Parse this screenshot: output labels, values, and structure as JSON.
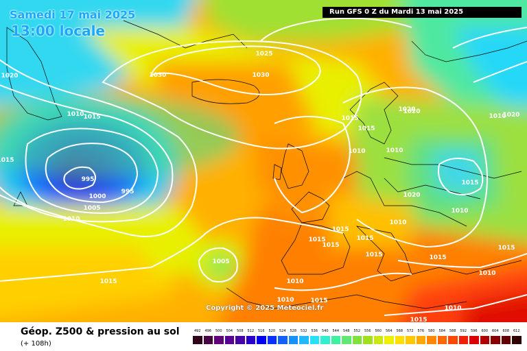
{
  "header": {
    "date": "Samedi 17 mai 2025",
    "time": "13:00 locale",
    "run": "Run GFS 0 Z du Mardi 13 mai 2025"
  },
  "copyright": "Copyright © 2025 Meteociel.fr",
  "footer": {
    "title": "Géop. Z500 & pression au sol",
    "subtitle": "(+ 108h)"
  },
  "legend": {
    "values": [
      "492",
      "496",
      "500",
      "504",
      "508",
      "512",
      "516",
      "520",
      "524",
      "528",
      "532",
      "536",
      "540",
      "544",
      "548",
      "552",
      "556",
      "560",
      "564",
      "568",
      "572",
      "576",
      "580",
      "584",
      "588",
      "592",
      "596",
      "600",
      "604",
      "608",
      "612"
    ],
    "colors": [
      "#300018",
      "#4a0040",
      "#620078",
      "#5a0090",
      "#4800a8",
      "#2a00c8",
      "#0000ee",
      "#0a30ff",
      "#1460ff",
      "#1890ff",
      "#20b8ff",
      "#28e0f8",
      "#30f0d0",
      "#40f0a0",
      "#60e870",
      "#80e040",
      "#a0e020",
      "#c8e810",
      "#eef000",
      "#ffe000",
      "#ffc800",
      "#ffa800",
      "#ff8800",
      "#ff6800",
      "#ff4800",
      "#f02000",
      "#d80000",
      "#b00000",
      "#880000",
      "#600000",
      "#300000"
    ]
  },
  "isobars": [
    {
      "v": "1025",
      "t": "1025"
    },
    {
      "v": "1030",
      "t": "1030"
    },
    {
      "v": "1030",
      "t": "1030"
    },
    {
      "v": "1020",
      "t": "1020"
    },
    {
      "v": "1010",
      "t": "1010"
    },
    {
      "v": "1015",
      "t": "1015"
    },
    {
      "v": "1015",
      "t": "1015"
    },
    {
      "v": "995",
      "t": "995"
    },
    {
      "v": "995",
      "t": "995"
    },
    {
      "v": "1000",
      "t": "1000"
    },
    {
      "v": "1005",
      "t": "1005"
    },
    {
      "v": "1010",
      "t": "1010"
    },
    {
      "v": "1020",
      "t": "1020"
    },
    {
      "v": "1015",
      "t": "1015"
    },
    {
      "v": "1010",
      "t": "1010"
    },
    {
      "v": "1020",
      "t": "1020"
    },
    {
      "v": "1010",
      "t": "1010"
    },
    {
      "v": "1010",
      "t": "1010"
    },
    {
      "v": "1020",
      "t": "1020"
    },
    {
      "v": "1015",
      "t": "1015"
    },
    {
      "v": "1010",
      "t": "1010"
    },
    {
      "v": "1015",
      "t": "1015"
    },
    {
      "v": "1010",
      "t": "1010"
    },
    {
      "v": "1015",
      "t": "1015"
    },
    {
      "v": "1015",
      "t": "1015"
    },
    {
      "v": "1015",
      "t": "1015"
    },
    {
      "v": "1015",
      "t": "1015"
    },
    {
      "v": "1015",
      "t": "1015"
    },
    {
      "v": "1015",
      "t": "1015"
    },
    {
      "v": "1005",
      "t": "1005"
    },
    {
      "v": "1010",
      "t": "1010"
    },
    {
      "v": "1010",
      "t": "1010"
    },
    {
      "v": "1015",
      "t": "1015"
    },
    {
      "v": "1010",
      "t": "1010"
    },
    {
      "v": "1010",
      "t": "1010"
    },
    {
      "v": "1015",
      "t": "1015"
    },
    {
      "v": "1015",
      "t": "1015"
    },
    {
      "v": "1015",
      "t": "1015"
    },
    {
      "v": "1020",
      "t": "1020"
    }
  ]
}
